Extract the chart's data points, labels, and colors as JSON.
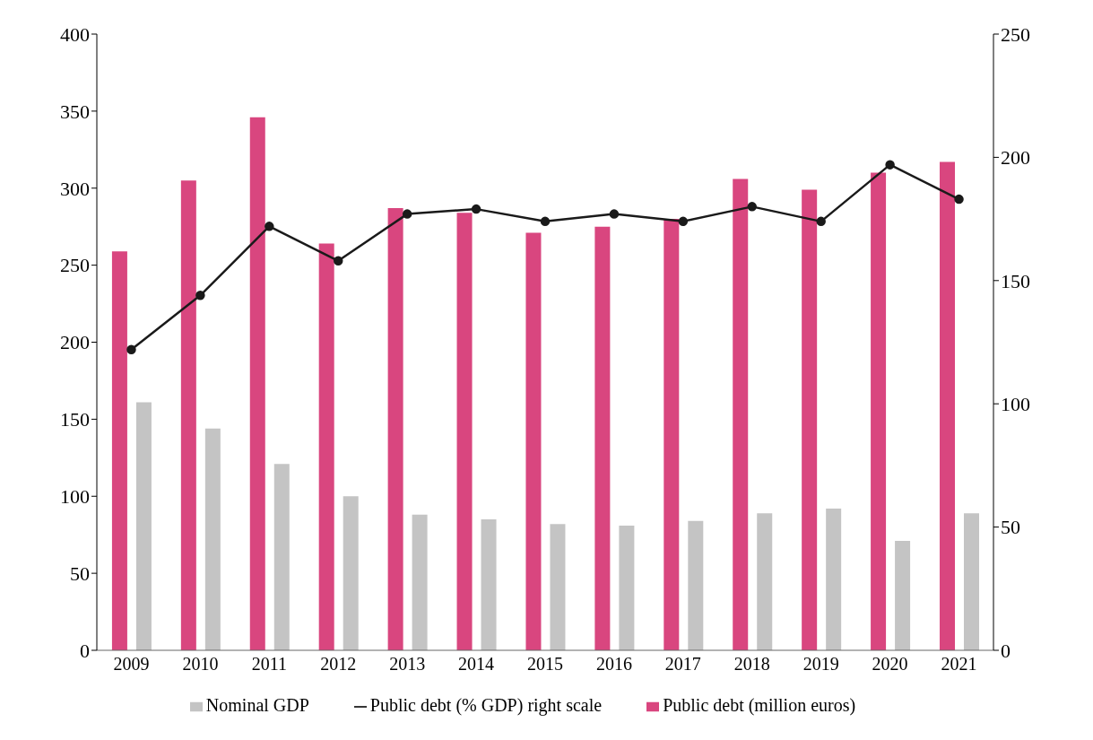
{
  "chart_data": {
    "type": "bar",
    "categories": [
      "2009",
      "2010",
      "2011",
      "2012",
      "2013",
      "2014",
      "2015",
      "2016",
      "2017",
      "2018",
      "2019",
      "2020",
      "2021"
    ],
    "series": [
      {
        "name": "Public debt (million euros)",
        "color": "#d9467f",
        "values": [
          259,
          305,
          346,
          264,
          287,
          284,
          271,
          275,
          280,
          306,
          299,
          310,
          317
        ]
      },
      {
        "name": "Nominal GDP",
        "color": "#c4c4c4",
        "values": [
          161,
          144,
          121,
          100,
          88,
          85,
          82,
          81,
          84,
          89,
          92,
          71,
          89
        ]
      },
      {
        "name": "Public debt (% GDP) right scale",
        "type": "line",
        "axis": "y2",
        "color": "#1a1a1a",
        "marker": "circle",
        "values": [
          122,
          144,
          172,
          158,
          177,
          179,
          174,
          177,
          174,
          180,
          174,
          197,
          183
        ]
      }
    ],
    "ylim": [
      0,
      400
    ],
    "yticks": [
      0,
      50,
      100,
      150,
      200,
      250,
      300,
      350,
      400
    ],
    "y2lim": [
      0,
      250
    ],
    "y2ticks": [
      0,
      50,
      100,
      150,
      200,
      250
    ],
    "grid": false,
    "legend": "bottom"
  }
}
